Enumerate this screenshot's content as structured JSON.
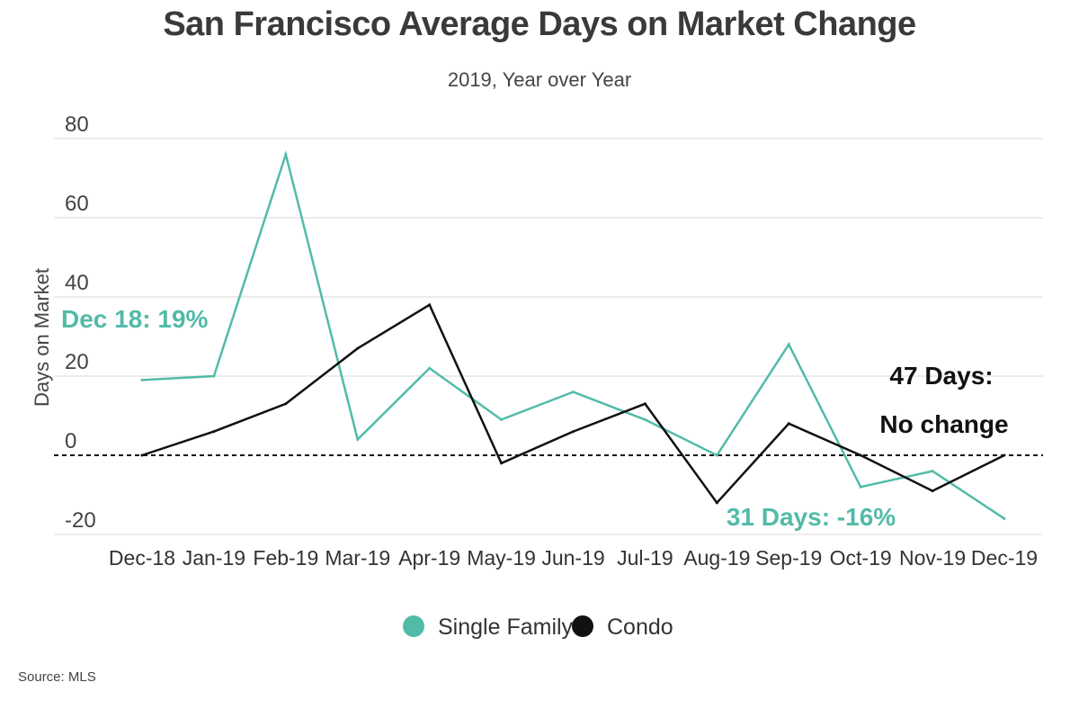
{
  "title": "San Francisco Average Days on Market Change",
  "subtitle": "2019, Year over Year",
  "source": "Source:  MLS",
  "colors": {
    "single_family": "#52bba8",
    "condo": "#111111",
    "grid": "#d9d9d9"
  },
  "chart_data": {
    "type": "line",
    "title": "San Francisco Average Days on Market Change",
    "subtitle": "2019, Year over Year",
    "ylabel": "Days on Market",
    "xlabel": "",
    "ylim": [
      -20,
      80
    ],
    "yticks": [
      80,
      60,
      40,
      20,
      0,
      -20
    ],
    "grid": true,
    "zero_line": "dotted",
    "legend_position": "bottom-center",
    "categories": [
      "Dec-18",
      "Jan-19",
      "Feb-19",
      "Mar-19",
      "Apr-19",
      "May-19",
      "Jun-19",
      "Jul-19",
      "Aug-19",
      "Sep-19",
      "Oct-19",
      "Nov-19",
      "Dec-19"
    ],
    "series": [
      {
        "name": "Single Family",
        "color": "#52bba8",
        "values": [
          19,
          20,
          76,
          4,
          22,
          9,
          16,
          9,
          0,
          28,
          -8,
          -4,
          -16
        ]
      },
      {
        "name": "Condo",
        "color": "#111111",
        "values": [
          0,
          6,
          13,
          27,
          38,
          -2,
          6,
          13,
          -12,
          8,
          0,
          -9,
          0
        ]
      }
    ],
    "annotations": [
      {
        "text": "Dec 18: 19%",
        "series": "Single Family",
        "category": "Dec-18"
      },
      {
        "text": "31 Days: -16%",
        "series": "Single Family",
        "category": "Dec-19"
      },
      {
        "text": "47 Days:",
        "series": "Condo",
        "category": "Dec-19"
      },
      {
        "text": "No change",
        "series": "Condo",
        "category": "Dec-19"
      }
    ]
  }
}
